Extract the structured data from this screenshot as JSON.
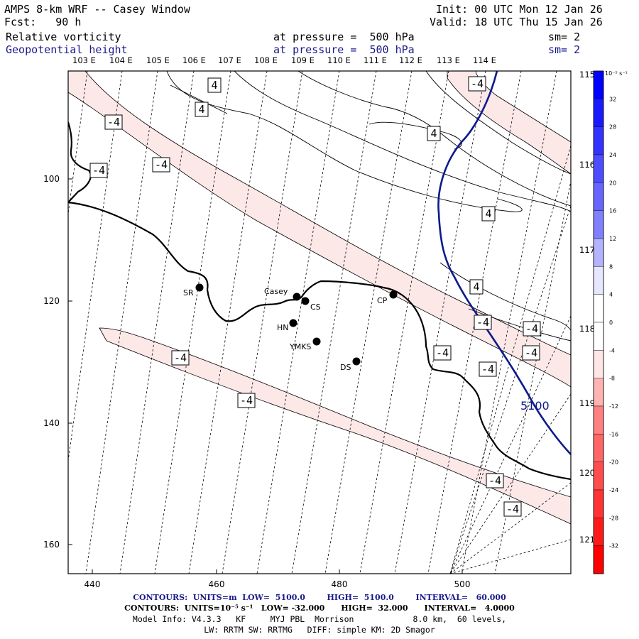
{
  "header": {
    "title": "AMPS 8-km WRF -- Casey Window",
    "init": "Init: 00 UTC Mon 12 Jan 26",
    "fcst": "Fcst:   90 h",
    "valid": "Valid: 18 UTC Thu 15 Jan 26",
    "field1": "Relative vorticity",
    "field1_level": "at pressure =  500 hPa",
    "field1_sm": "sm= 2",
    "field2": "Geopotential height",
    "field2_level": "at pressure =  500 hPa",
    "field2_sm": "sm= 2"
  },
  "map": {
    "lon_labels_top": [
      "103 E",
      "104 E",
      "105 E",
      "106 E",
      "107 E",
      "108 E",
      "109 E",
      "110 E",
      "111 E",
      "112 E",
      "113 E",
      "114 E"
    ],
    "lon_labels_right": [
      "115 E",
      "116 E",
      "117 E",
      "118 E",
      "119 E",
      "120 E",
      "121 E"
    ],
    "x_ticks": [
      440,
      460,
      480,
      500
    ],
    "y_ticks": [
      100,
      120,
      140,
      160
    ],
    "stations": [
      "SR",
      "Casey",
      "CS",
      "CP",
      "HN",
      "YMKS",
      "DS"
    ],
    "vorticity_labels": [
      "-4",
      "-4",
      "-4",
      "-4",
      "-4",
      "-4",
      "-4",
      "-4",
      "-4",
      "-4",
      "-4",
      "-4",
      "-4",
      "-4"
    ],
    "positive_labels": [
      "4",
      "4",
      "4",
      "4",
      "4"
    ],
    "height_label": "5100",
    "colorbar_units": "10⁻⁵ s⁻¹",
    "colorbar_ticks": [
      "32",
      "28",
      "24",
      "20",
      "16",
      "12",
      "8",
      "4",
      "0",
      "-4",
      "-8",
      "-12",
      "-16",
      "-20",
      "-24",
      "-28",
      "-32"
    ],
    "colorbar_colors": [
      "#0000ff",
      "#1a1aff",
      "#3333ff",
      "#4d4dff",
      "#6666ff",
      "#8080ff",
      "#b3b3ff",
      "#e6e6ff",
      "#ffffff",
      "#ffffff",
      "#ffe6e6",
      "#ffb3b3",
      "#ff8080",
      "#ff6666",
      "#ff4d4d",
      "#ff3333",
      "#ff1a1a",
      "#ff0000"
    ],
    "vort_fill": "#fde8e8",
    "height_color": "#0d1a8c"
  },
  "footer": {
    "line1": "CONTOURS:  UNITS=m  LOW=  5100.0        HIGH=  5100.0        INTERVAL=   60.000",
    "line2": "CONTOURS:  UNITS=10⁻⁵ s⁻¹   LOW= -32.000      HIGH=  32.000      INTERVAL=   4.0000",
    "line3": "Model Info: V4.3.3   KF     MYJ PBL  Morrison            8.0 km,  60 levels,",
    "line4": "LW: RRTM SW: RRTMG   DIFF: simple KM: 2D Smagor"
  }
}
